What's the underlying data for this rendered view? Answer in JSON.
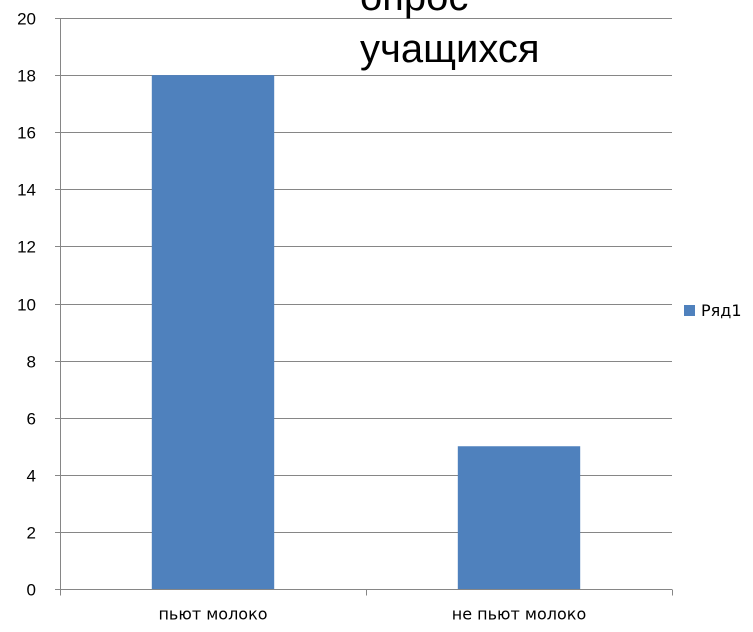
{
  "chart_data": {
    "type": "bar",
    "title_lines": [
      "опрос",
      "учащихся"
    ],
    "categories": [
      "пьют молоко",
      "не пьют молоко"
    ],
    "series": [
      {
        "name": "Ряд1",
        "values": [
          18,
          5
        ]
      }
    ],
    "ylim": [
      0,
      20
    ],
    "ytick_step": 2,
    "grid": true,
    "legend": "right",
    "colors": {
      "bar": "#4f81bd",
      "grid": "#868686",
      "text": "#000000"
    }
  }
}
